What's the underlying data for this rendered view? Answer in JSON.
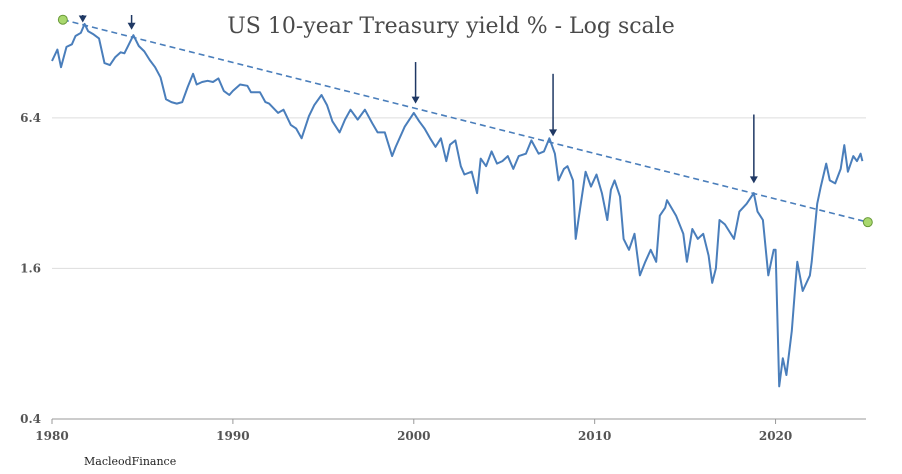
{
  "chart_data": {
    "type": "line",
    "title": "US 10-year Treasury yield % - Log scale",
    "credit": "MacleodFinance",
    "y_scale": "log",
    "xlim": [
      1980,
      2025
    ],
    "ylim": [
      0.4,
      16.5
    ],
    "y_ticks": [
      {
        "value": 0.4,
        "label": "0.4"
      },
      {
        "value": 1.6,
        "label": "1.6"
      },
      {
        "value": 6.4,
        "label": "6.4"
      }
    ],
    "x_ticks": [
      {
        "value": 1980,
        "label": "1980"
      },
      {
        "value": 1990,
        "label": "1990"
      },
      {
        "value": 2000,
        "label": "2000"
      },
      {
        "value": 2010,
        "label": "2010"
      },
      {
        "value": 2020,
        "label": "2020"
      }
    ],
    "grid": {
      "horizontal": true,
      "vertical": false
    },
    "colors": {
      "series": "#4a7ebb",
      "trendline": "#4a7ebb",
      "arrow": "#1f3864",
      "marker_fill": "#a9d86e",
      "marker_stroke": "#6a9a3a",
      "grid": "#dddddd",
      "axis": "#999999"
    },
    "series": [
      {
        "values": [
          [
            1980.0,
            10.8
          ],
          [
            1980.3,
            12.0
          ],
          [
            1980.5,
            10.2
          ],
          [
            1980.8,
            12.3
          ],
          [
            1981.1,
            12.6
          ],
          [
            1981.3,
            13.6
          ],
          [
            1981.6,
            14.0
          ],
          [
            1981.8,
            15.2
          ],
          [
            1982.0,
            14.2
          ],
          [
            1982.3,
            13.8
          ],
          [
            1982.6,
            13.3
          ],
          [
            1982.9,
            10.6
          ],
          [
            1983.2,
            10.4
          ],
          [
            1983.5,
            11.2
          ],
          [
            1983.8,
            11.7
          ],
          [
            1984.0,
            11.6
          ],
          [
            1984.5,
            13.7
          ],
          [
            1984.8,
            12.4
          ],
          [
            1985.1,
            11.8
          ],
          [
            1985.4,
            10.9
          ],
          [
            1985.7,
            10.2
          ],
          [
            1986.0,
            9.3
          ],
          [
            1986.3,
            7.6
          ],
          [
            1986.6,
            7.4
          ],
          [
            1986.9,
            7.3
          ],
          [
            1987.2,
            7.4
          ],
          [
            1987.5,
            8.5
          ],
          [
            1987.8,
            9.6
          ],
          [
            1988.0,
            8.7
          ],
          [
            1988.3,
            8.9
          ],
          [
            1988.6,
            9.0
          ],
          [
            1988.9,
            8.9
          ],
          [
            1989.2,
            9.2
          ],
          [
            1989.5,
            8.2
          ],
          [
            1989.8,
            7.9
          ],
          [
            1990.0,
            8.2
          ],
          [
            1990.4,
            8.7
          ],
          [
            1990.8,
            8.6
          ],
          [
            1991.0,
            8.1
          ],
          [
            1991.5,
            8.1
          ],
          [
            1991.8,
            7.4
          ],
          [
            1992.0,
            7.3
          ],
          [
            1992.5,
            6.7
          ],
          [
            1992.8,
            6.9
          ],
          [
            1993.2,
            6.0
          ],
          [
            1993.5,
            5.8
          ],
          [
            1993.8,
            5.3
          ],
          [
            1994.2,
            6.5
          ],
          [
            1994.5,
            7.2
          ],
          [
            1994.9,
            7.9
          ],
          [
            1995.2,
            7.2
          ],
          [
            1995.5,
            6.2
          ],
          [
            1995.9,
            5.6
          ],
          [
            1996.2,
            6.3
          ],
          [
            1996.5,
            6.9
          ],
          [
            1996.9,
            6.3
          ],
          [
            1997.3,
            6.9
          ],
          [
            1997.7,
            6.1
          ],
          [
            1998.0,
            5.6
          ],
          [
            1998.4,
            5.6
          ],
          [
            1998.8,
            4.5
          ],
          [
            1999.0,
            4.9
          ],
          [
            1999.5,
            5.9
          ],
          [
            2000.0,
            6.7
          ],
          [
            2000.3,
            6.2
          ],
          [
            2000.6,
            5.8
          ],
          [
            2000.9,
            5.3
          ],
          [
            2001.2,
            4.9
          ],
          [
            2001.5,
            5.3
          ],
          [
            2001.8,
            4.3
          ],
          [
            2002.0,
            5.0
          ],
          [
            2002.3,
            5.2
          ],
          [
            2002.6,
            4.1
          ],
          [
            2002.8,
            3.8
          ],
          [
            2003.2,
            3.9
          ],
          [
            2003.5,
            3.2
          ],
          [
            2003.7,
            4.4
          ],
          [
            2004.0,
            4.1
          ],
          [
            2004.3,
            4.7
          ],
          [
            2004.6,
            4.2
          ],
          [
            2004.9,
            4.3
          ],
          [
            2005.2,
            4.5
          ],
          [
            2005.5,
            4.0
          ],
          [
            2005.8,
            4.5
          ],
          [
            2006.2,
            4.6
          ],
          [
            2006.5,
            5.2
          ],
          [
            2006.9,
            4.6
          ],
          [
            2007.2,
            4.7
          ],
          [
            2007.5,
            5.3
          ],
          [
            2007.8,
            4.6
          ],
          [
            2008.0,
            3.6
          ],
          [
            2008.3,
            4.0
          ],
          [
            2008.5,
            4.1
          ],
          [
            2008.8,
            3.6
          ],
          [
            2008.95,
            2.1
          ],
          [
            2009.2,
            2.8
          ],
          [
            2009.5,
            3.9
          ],
          [
            2009.8,
            3.4
          ],
          [
            2010.1,
            3.8
          ],
          [
            2010.4,
            3.2
          ],
          [
            2010.7,
            2.5
          ],
          [
            2010.9,
            3.3
          ],
          [
            2011.1,
            3.6
          ],
          [
            2011.4,
            3.1
          ],
          [
            2011.6,
            2.1
          ],
          [
            2011.9,
            1.9
          ],
          [
            2012.2,
            2.2
          ],
          [
            2012.5,
            1.5
          ],
          [
            2012.8,
            1.7
          ],
          [
            2013.1,
            1.9
          ],
          [
            2013.4,
            1.7
          ],
          [
            2013.6,
            2.6
          ],
          [
            2013.9,
            2.8
          ],
          [
            2014.0,
            3.0
          ],
          [
            2014.5,
            2.6
          ],
          [
            2014.9,
            2.2
          ],
          [
            2015.1,
            1.7
          ],
          [
            2015.4,
            2.3
          ],
          [
            2015.7,
            2.1
          ],
          [
            2016.0,
            2.2
          ],
          [
            2016.3,
            1.8
          ],
          [
            2016.5,
            1.4
          ],
          [
            2016.7,
            1.6
          ],
          [
            2016.9,
            2.5
          ],
          [
            2017.2,
            2.4
          ],
          [
            2017.7,
            2.1
          ],
          [
            2018.0,
            2.7
          ],
          [
            2018.4,
            2.9
          ],
          [
            2018.8,
            3.2
          ],
          [
            2019.0,
            2.7
          ],
          [
            2019.3,
            2.5
          ],
          [
            2019.6,
            1.5
          ],
          [
            2019.9,
            1.9
          ],
          [
            2020.0,
            1.9
          ],
          [
            2020.2,
            0.54
          ],
          [
            2020.4,
            0.7
          ],
          [
            2020.6,
            0.6
          ],
          [
            2020.9,
            0.9
          ],
          [
            2021.1,
            1.4
          ],
          [
            2021.2,
            1.7
          ],
          [
            2021.5,
            1.3
          ],
          [
            2021.9,
            1.5
          ],
          [
            2022.0,
            1.7
          ],
          [
            2022.3,
            2.9
          ],
          [
            2022.5,
            3.4
          ],
          [
            2022.8,
            4.2
          ],
          [
            2023.0,
            3.6
          ],
          [
            2023.3,
            3.5
          ],
          [
            2023.6,
            4.0
          ],
          [
            2023.8,
            4.98
          ],
          [
            2024.0,
            3.9
          ],
          [
            2024.3,
            4.5
          ],
          [
            2024.5,
            4.3
          ],
          [
            2024.7,
            4.6
          ],
          [
            2024.8,
            4.3
          ]
        ]
      }
    ],
    "trendline": {
      "start": [
        1980.6,
        15.8
      ],
      "end": [
        2025.1,
        2.45
      ]
    },
    "arrows": [
      {
        "x": 1981.7,
        "y_top": 16.5,
        "y_tip": 15.4
      },
      {
        "x": 1984.4,
        "y_top": 16.5,
        "y_tip": 14.4
      },
      {
        "x": 2000.1,
        "y_top": 10.7,
        "y_tip": 7.3
      },
      {
        "x": 2007.7,
        "y_top": 9.6,
        "y_tip": 5.4
      },
      {
        "x": 2018.8,
        "y_top": 6.6,
        "y_tip": 3.5
      }
    ]
  }
}
